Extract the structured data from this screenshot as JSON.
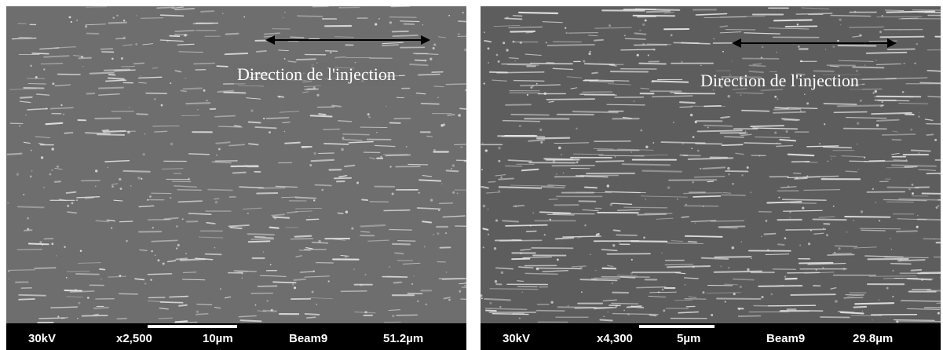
{
  "images": [
    {
      "caption": "Direction de l'injection",
      "voltage": "30kV",
      "magnification": "x2,500",
      "scale_label": "10µm",
      "beam": "Beam9",
      "field_width": "51.2µm"
    },
    {
      "caption": "Direction de l'injection",
      "voltage": "30kV",
      "magnification": "x4,300",
      "scale_label": "5µm",
      "beam": "Beam9",
      "field_width": "29.8µm"
    }
  ],
  "colors": {
    "left_background": "#6e6e6e",
    "right_background": "#5d5d5d",
    "info_bar": "#000000",
    "fibers": "#e6e6e6"
  }
}
